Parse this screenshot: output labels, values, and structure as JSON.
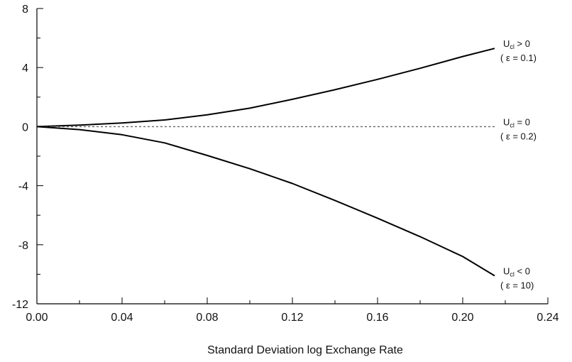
{
  "chart_data": {
    "type": "line",
    "title": "",
    "xlabel": "Standard Deviation log Exchange Rate",
    "ylabel": "",
    "xlim": [
      0.0,
      0.24
    ],
    "ylim": [
      -12,
      8
    ],
    "x_ticks": [
      "0.00",
      "0.04",
      "0.08",
      "0.12",
      "0.16",
      "0.20",
      "0.24"
    ],
    "y_ticks": [
      "8",
      "4",
      "0",
      "-4",
      "-8",
      "-12"
    ],
    "grid": false,
    "series": [
      {
        "style": "solid",
        "color": "#000000",
        "points": [
          [
            0.0,
            0.0
          ],
          [
            0.02,
            0.1
          ],
          [
            0.04,
            0.25
          ],
          [
            0.06,
            0.45
          ],
          [
            0.08,
            0.8
          ],
          [
            0.1,
            1.25
          ],
          [
            0.12,
            1.85
          ],
          [
            0.14,
            2.5
          ],
          [
            0.16,
            3.2
          ],
          [
            0.18,
            3.95
          ],
          [
            0.2,
            4.75
          ],
          [
            0.215,
            5.3
          ]
        ],
        "label": {
          "main": "U",
          "sub": "cl",
          "rel": " > 0",
          "param": "( ε = 0.1)"
        }
      },
      {
        "style": "dashed",
        "color": "#666666",
        "points": [
          [
            0.0,
            0.0
          ],
          [
            0.215,
            0.0
          ]
        ],
        "label": {
          "main": "U",
          "sub": "cl",
          "rel": " = 0",
          "param": "( ε = 0.2)"
        }
      },
      {
        "style": "solid",
        "color": "#000000",
        "points": [
          [
            0.0,
            0.0
          ],
          [
            0.02,
            -0.2
          ],
          [
            0.04,
            -0.55
          ],
          [
            0.06,
            -1.1
          ],
          [
            0.08,
            -1.95
          ],
          [
            0.1,
            -2.85
          ],
          [
            0.12,
            -3.85
          ],
          [
            0.14,
            -5.0
          ],
          [
            0.16,
            -6.2
          ],
          [
            0.18,
            -7.45
          ],
          [
            0.2,
            -8.8
          ],
          [
            0.215,
            -10.1
          ]
        ],
        "label": {
          "main": "U",
          "sub": "cl",
          "rel": " < 0",
          "param": "( ε = 10)"
        }
      }
    ]
  }
}
